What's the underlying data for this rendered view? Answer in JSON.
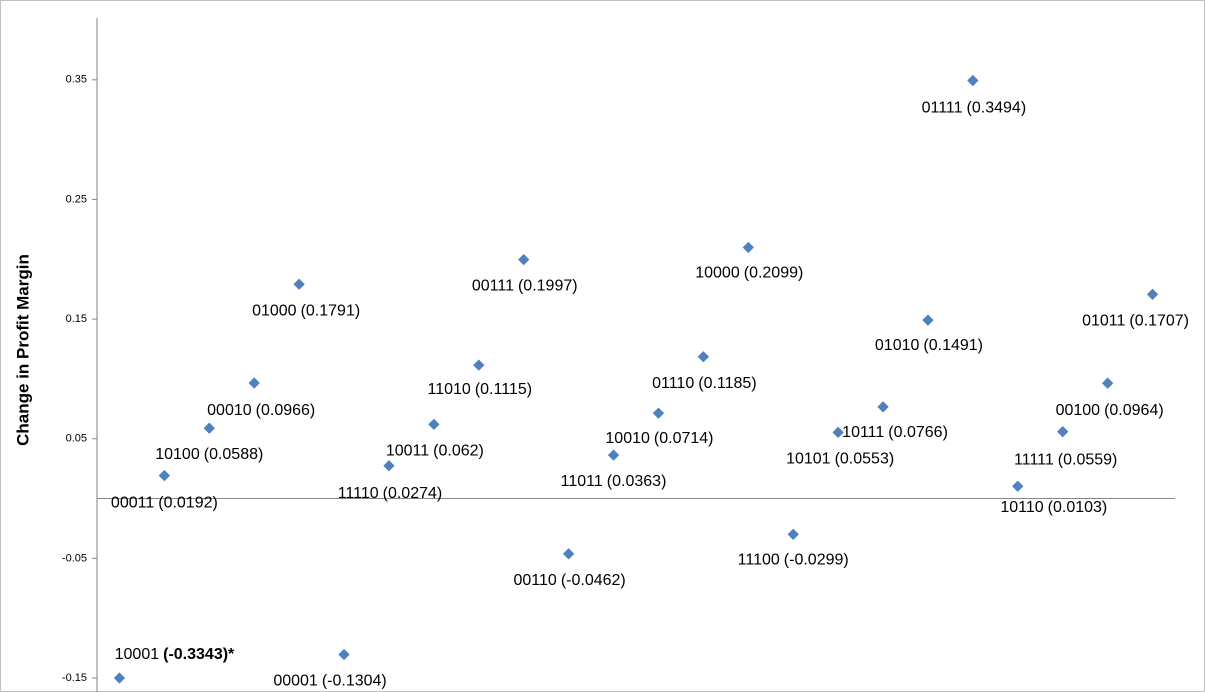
{
  "chart_data": {
    "type": "scatter",
    "y_axis_label": "Change in Profit Margin",
    "color": "#4f81bd",
    "codes": [
      "10001",
      "00011",
      "10100",
      "00010",
      "01000",
      "00001",
      "11110",
      "10011",
      "11010",
      "00111",
      "00110",
      "11011",
      "10010",
      "01110",
      "10000",
      "11100",
      "10101",
      "10111",
      "01010",
      "01111",
      "10110",
      "11111",
      "00100",
      "01011"
    ],
    "notes": [
      "(-0.3343)*",
      "(0.0192)",
      "(0.0588)",
      "(0.0966)",
      "(0.1791)",
      "(-0.1304)",
      "(0.0274)",
      "(0.062)",
      "(0.1115)",
      "(0.1997)",
      "(-0.0462)",
      "(0.0363)",
      "(0.0714)",
      "(0.1185)",
      "(0.2099)",
      "(-0.0299)",
      "(0.0553)",
      "(0.0766)",
      "(0.1491)",
      "(0.3494)",
      "(0.0103)",
      "(0.0559)",
      "(0.0964)",
      "(0.1707)"
    ],
    "values": [
      -0.15,
      0.0192,
      0.0588,
      0.0966,
      0.1791,
      -0.1304,
      0.0274,
      0.062,
      0.1115,
      0.1997,
      -0.0462,
      0.0363,
      0.0714,
      0.1185,
      0.2099,
      -0.0299,
      0.0553,
      0.0766,
      0.1491,
      0.3494,
      0.0103,
      0.0559,
      0.0964,
      0.1707
    ],
    "ylim": [
      -0.15,
      0.4
    ],
    "yticks": [
      -0.15,
      -0.05,
      0.05,
      0.15,
      0.25,
      0.35
    ]
  }
}
